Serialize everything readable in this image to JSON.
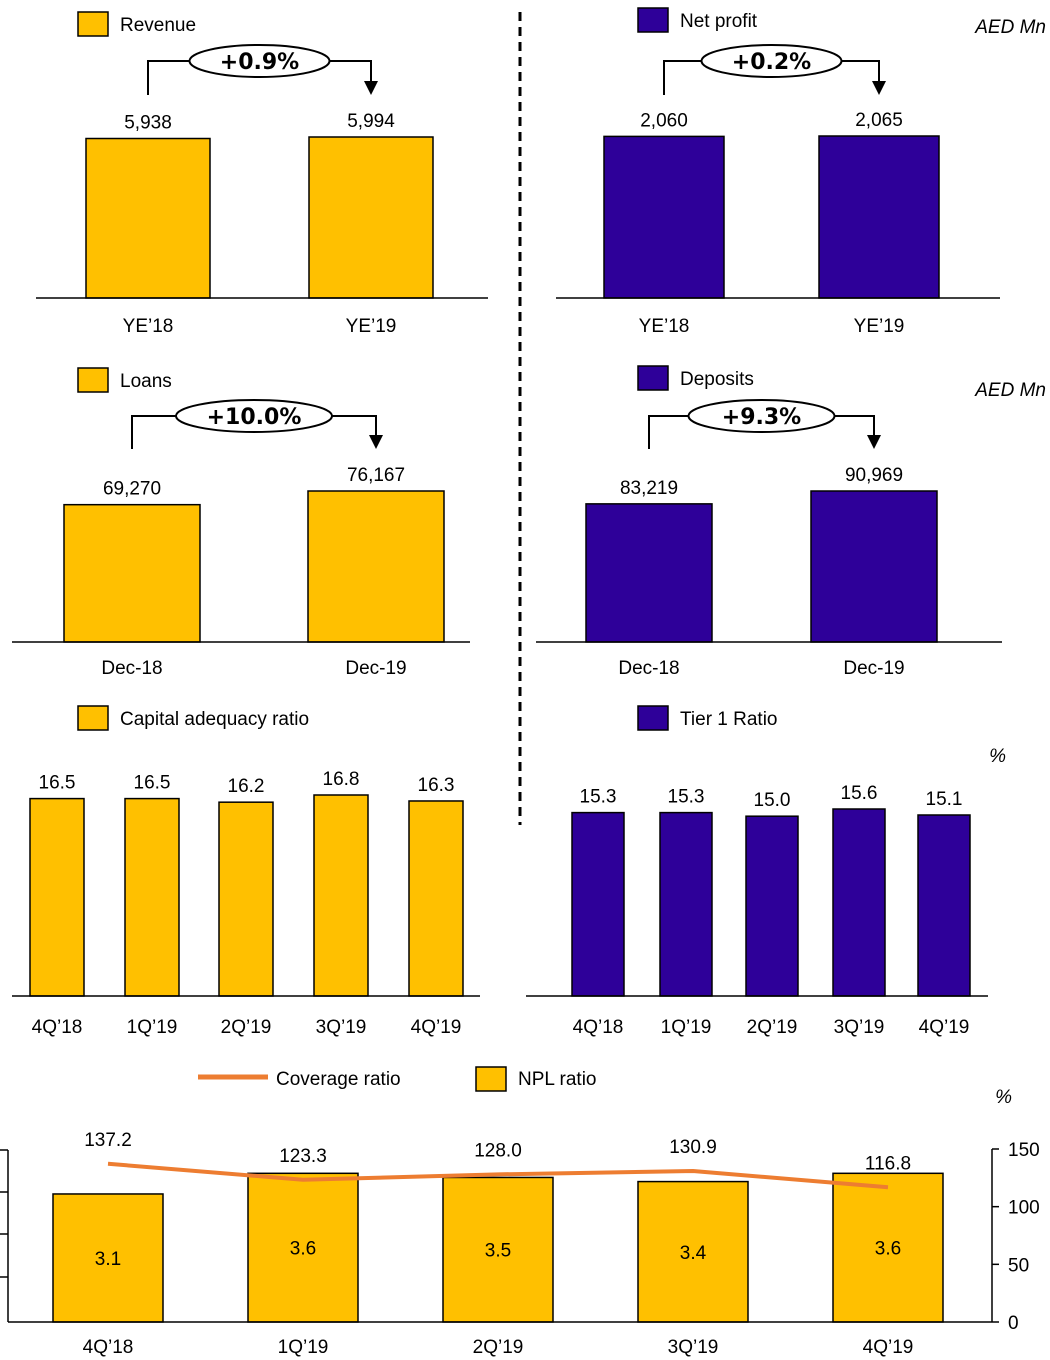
{
  "colors": {
    "gold": "#FFC000",
    "purple": "#2E0099",
    "orange": "#ED7D31",
    "axis": "#000000"
  },
  "units": {
    "aed": "AED Mn",
    "percent": "%"
  },
  "charts": [
    {
      "id": "revenue",
      "legend": "Revenue",
      "color": "gold",
      "categories": [
        "YE’18",
        "YE’19"
      ],
      "values": [
        5938,
        5994
      ],
      "value_labels": [
        "5,938",
        "5,994"
      ],
      "growth": "+0.9%"
    },
    {
      "id": "net-profit",
      "legend": "Net profit",
      "color": "purple",
      "categories": [
        "YE’18",
        "YE’19"
      ],
      "values": [
        2060,
        2065
      ],
      "value_labels": [
        "2,060",
        "2,065"
      ],
      "growth": "+0.2%"
    },
    {
      "id": "loans",
      "legend": "Loans",
      "color": "gold",
      "categories": [
        "Dec-18",
        "Dec-19"
      ],
      "values": [
        69270,
        76167
      ],
      "value_labels": [
        "69,270",
        "76,167"
      ],
      "growth": "+10.0%"
    },
    {
      "id": "deposits",
      "legend": "Deposits",
      "color": "purple",
      "categories": [
        "Dec-18",
        "Dec-19"
      ],
      "values": [
        83219,
        90969
      ],
      "value_labels": [
        "83,219",
        "90,969"
      ],
      "growth": "+9.3%"
    },
    {
      "id": "car",
      "legend": "Capital adequacy ratio",
      "color": "gold",
      "categories": [
        "4Q’18",
        "1Q’19",
        "2Q’19",
        "3Q’19",
        "4Q’19"
      ],
      "values": [
        16.5,
        16.5,
        16.2,
        16.8,
        16.3
      ],
      "value_labels": [
        "16.5",
        "16.5",
        "16.2",
        "16.8",
        "16.3"
      ]
    },
    {
      "id": "tier1",
      "legend": "Tier 1 Ratio",
      "color": "purple",
      "categories": [
        "4Q’18",
        "1Q’19",
        "2Q’19",
        "3Q’19",
        "4Q’19"
      ],
      "values": [
        15.3,
        15.3,
        15.0,
        15.6,
        15.1
      ],
      "value_labels": [
        "15.3",
        "15.3",
        "15.0",
        "15.6",
        "15.1"
      ]
    }
  ],
  "chart_data": {
    "type": "bar",
    "legend": [
      "Coverage ratio",
      "NPL ratio"
    ],
    "categories": [
      "4Q’18",
      "1Q’19",
      "2Q’19",
      "3Q’19",
      "4Q’19"
    ],
    "series": [
      {
        "name": "NPL ratio",
        "type": "bar",
        "values": [
          3.1,
          3.6,
          3.5,
          3.4,
          3.6
        ],
        "labels": [
          "3.1",
          "3.6",
          "3.5",
          "3.4",
          "3.6"
        ]
      },
      {
        "name": "Coverage ratio",
        "type": "line",
        "axis": "right",
        "values": [
          137.2,
          123.3,
          128.0,
          130.9,
          116.8
        ],
        "labels": [
          "137.2",
          "123.3",
          "128.0",
          "130.9",
          "116.8"
        ]
      }
    ],
    "y2_ticks": [
      "0",
      "50",
      "100",
      "150"
    ],
    "y2lim": [
      0,
      150
    ]
  }
}
